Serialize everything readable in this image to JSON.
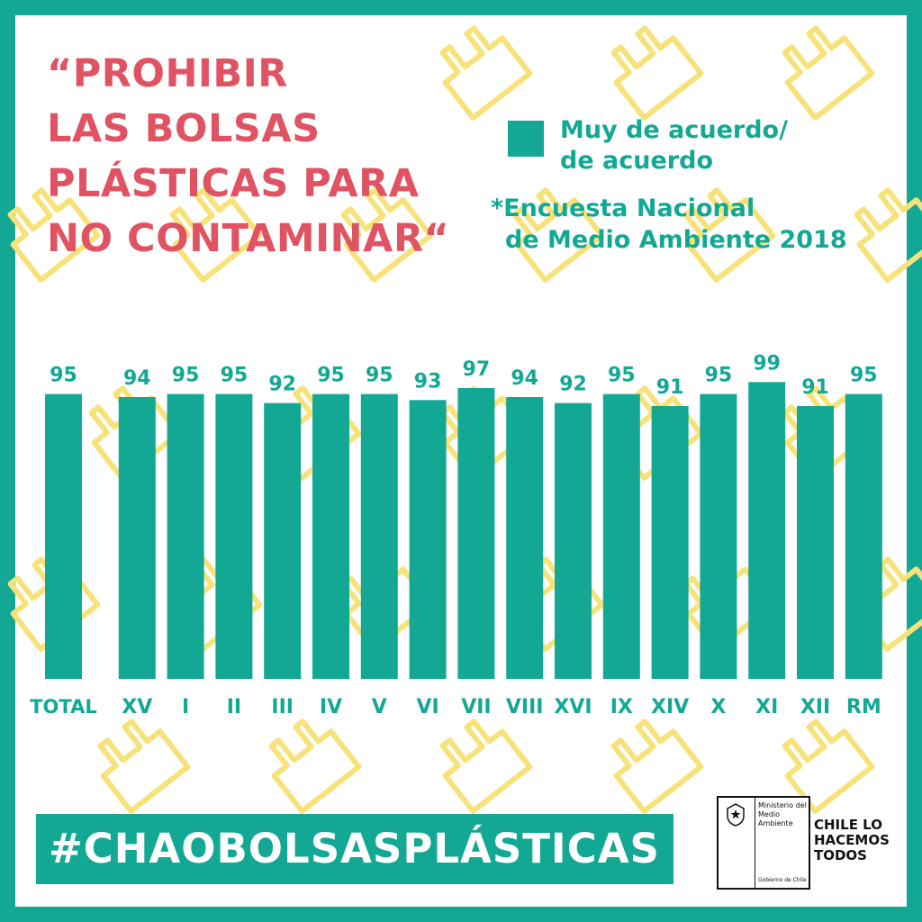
{
  "title_lines": [
    "“PROHIBIR",
    "LAS BOLSAS",
    "PLÁSTICAS PARA",
    "NO CONTAMINAR“"
  ],
  "legend": {
    "label_lines": [
      "Muy de acuerdo/",
      "de acuerdo"
    ]
  },
  "source_lines": [
    "*Encuesta Nacional",
    "de Medio Ambiente 2018"
  ],
  "hashtag": "#CHAOBOLSASPLÁSTICAS",
  "logo": {
    "ministry_lines": [
      "Ministerio del",
      "Medio",
      "Ambiente"
    ],
    "government": "Gobierno de Chile",
    "slogan_lines": [
      "CHILE LO",
      "HACEMOS",
      "TODOS"
    ]
  },
  "colors": {
    "teal": "#12a894",
    "red": "#e05363",
    "pattern_yellow": "#f7e27a",
    "dark": "#111111"
  },
  "pattern_icon": "plastic-bag-outline-icon",
  "chart_data": {
    "type": "bar",
    "categories": [
      "TOTAL",
      "XV",
      "I",
      "II",
      "III",
      "IV",
      "V",
      "VI",
      "VII",
      "VIII",
      "XVI",
      "IX",
      "XIV",
      "X",
      "XI",
      "XII",
      "RM"
    ],
    "series": [
      {
        "name": "Muy de acuerdo/ de acuerdo",
        "values": [
          95,
          94,
          95,
          95,
          92,
          95,
          95,
          93,
          97,
          94,
          92,
          95,
          91,
          95,
          99,
          91,
          95
        ]
      }
    ],
    "title": "“PROHIBIR LAS BOLSAS PLÁSTICAS PARA NO CONTAMINAR“",
    "xlabel": "",
    "ylabel": "",
    "data_labels": true,
    "grid": false,
    "legend_position": "top-right",
    "bar_color": "#12a894"
  }
}
